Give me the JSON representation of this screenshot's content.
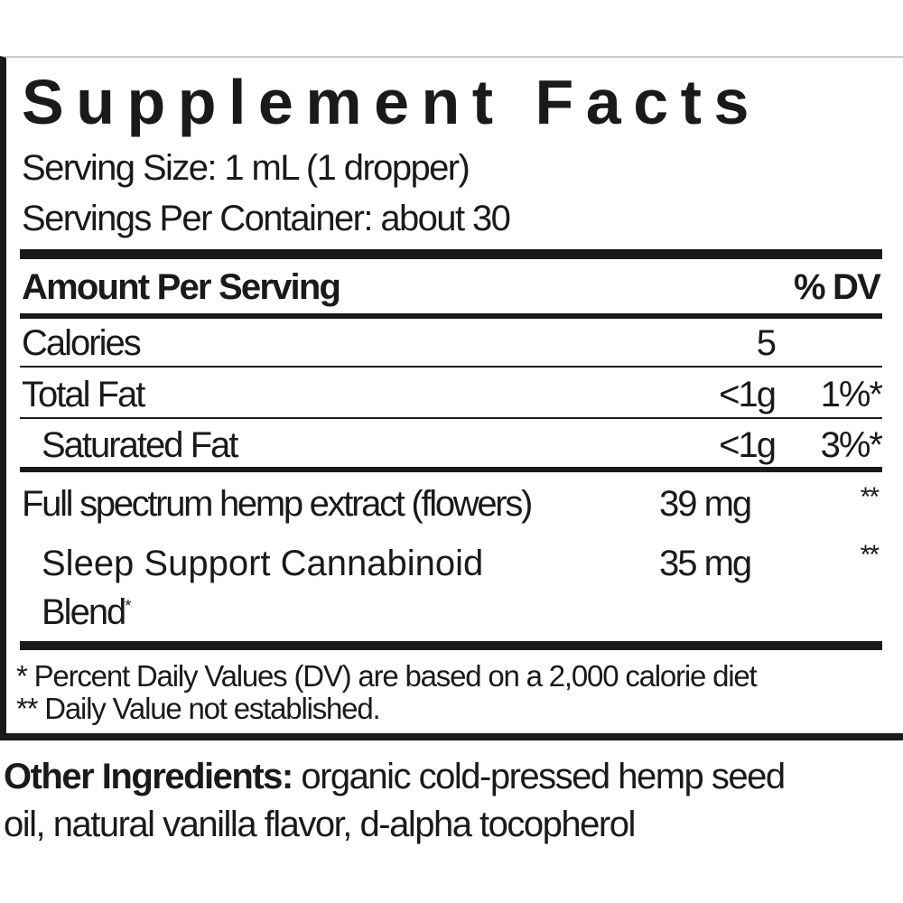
{
  "title": "Supplement Facts",
  "serving_size": "Serving Size: 1 mL (1 dropper)",
  "servings_per_container": "Servings Per Container: about 30",
  "header": {
    "amount": "Amount Per Serving",
    "dv": "% DV"
  },
  "rows": [
    {
      "name": "Calories",
      "amount": "5",
      "dv": ""
    },
    {
      "name": "Total Fat",
      "amount": "<1g",
      "dv": "1%*"
    },
    {
      "name": "Saturated Fat",
      "amount": "<1g",
      "dv": "3%*"
    },
    {
      "name": "Full spectrum hemp extract (flowers)",
      "amount": "39 mg",
      "dv": "**"
    },
    {
      "name_line1": "Sleep Support Cannabinoid",
      "name_line2": "Blend",
      "name_mark": "*",
      "amount": "35 mg",
      "dv": "**"
    }
  ],
  "footnotes": [
    "* Percent Daily Values (DV) are based on a 2,000 calorie diet",
    "** Daily Value not established."
  ],
  "other_ingredients": {
    "label": "Other Ingredients:",
    "line1": " organic cold-pressed hemp seed",
    "line2": "oil, natural vanilla flavor, d-alpha tocopherol"
  }
}
